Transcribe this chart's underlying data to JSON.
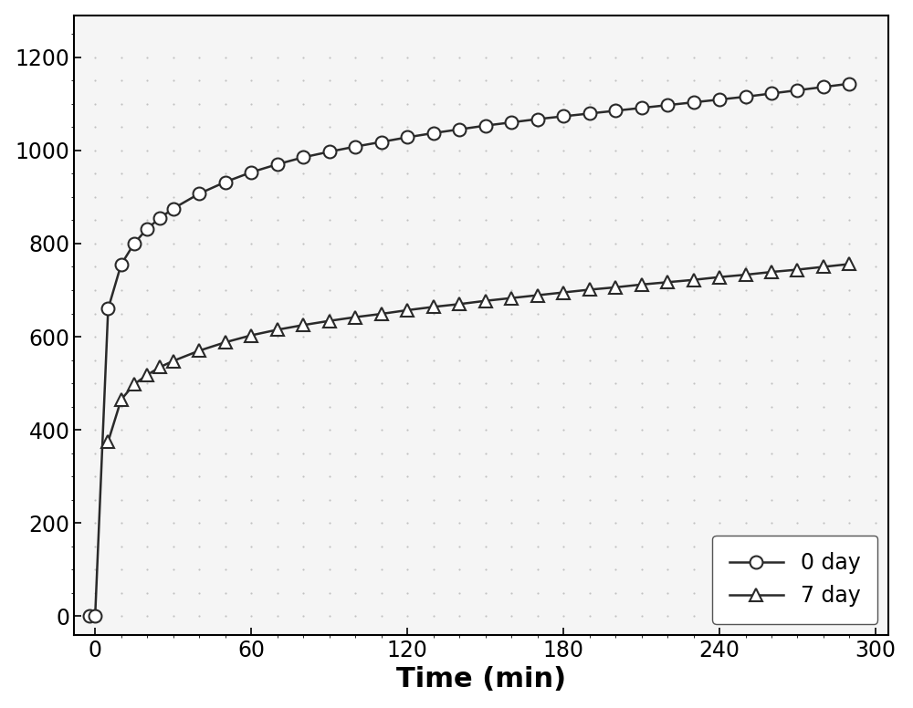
{
  "series": [
    {
      "label": "0 day",
      "marker": "o",
      "color": "#2a2a2a",
      "x": [
        -2,
        0,
        5,
        10,
        15,
        20,
        25,
        30,
        40,
        50,
        60,
        70,
        80,
        90,
        100,
        110,
        120,
        130,
        140,
        150,
        160,
        170,
        180,
        190,
        200,
        210,
        220,
        230,
        240,
        250,
        260,
        270,
        280,
        290
      ],
      "y": [
        0,
        0,
        660,
        755,
        800,
        832,
        855,
        875,
        907,
        932,
        953,
        970,
        985,
        997,
        1008,
        1018,
        1028,
        1037,
        1045,
        1053,
        1060,
        1067,
        1073,
        1079,
        1085,
        1091,
        1097,
        1103,
        1109,
        1115,
        1122,
        1129,
        1136,
        1143
      ]
    },
    {
      "label": "7 day",
      "marker": "^",
      "color": "#2a2a2a",
      "x": [
        5,
        10,
        15,
        20,
        25,
        30,
        40,
        50,
        60,
        70,
        80,
        90,
        100,
        110,
        120,
        130,
        140,
        150,
        160,
        170,
        180,
        190,
        200,
        210,
        220,
        230,
        240,
        250,
        260,
        270,
        280,
        290
      ],
      "y": [
        375,
        465,
        498,
        518,
        535,
        548,
        570,
        588,
        603,
        615,
        625,
        634,
        642,
        649,
        657,
        664,
        670,
        677,
        683,
        689,
        695,
        701,
        706,
        712,
        717,
        722,
        728,
        733,
        739,
        744,
        750,
        756
      ]
    }
  ],
  "xlabel": "Time (min)",
  "xlim": [
    -8,
    305
  ],
  "ylim": [
    -40,
    1290
  ],
  "xticks": [
    0,
    60,
    120,
    180,
    240,
    300
  ],
  "yticks": [
    0,
    200,
    400,
    600,
    800,
    1000,
    1200
  ],
  "background_color": "#ffffff",
  "plot_bg_color": "#f5f5f5",
  "legend_loc": "lower right",
  "xlabel_fontsize": 22,
  "tick_fontsize": 17,
  "legend_fontsize": 17,
  "linewidth": 1.8,
  "markersize": 10
}
